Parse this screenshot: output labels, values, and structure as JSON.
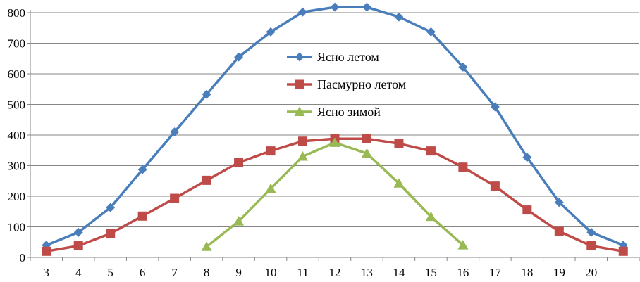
{
  "chart_data": {
    "type": "line",
    "title": "",
    "xlabel": "",
    "ylabel": "",
    "categories": [
      "3",
      "4",
      "5",
      "6",
      "7",
      "8",
      "9",
      "10",
      "11",
      "12",
      "13",
      "14",
      "15",
      "16",
      "17",
      "18",
      "19",
      "20",
      ""
    ],
    "ylim": [
      0,
      800
    ],
    "yticks": [
      0,
      100,
      200,
      300,
      400,
      500,
      600,
      700,
      800
    ],
    "grid": "horizontal",
    "legend_position": "center-top",
    "series": [
      {
        "name": "Ясно летом",
        "color": "#4a7ebb",
        "marker": "diamond",
        "values": [
          40,
          82,
          163,
          287,
          410,
          533,
          655,
          737,
          802,
          818,
          818,
          786,
          737,
          622,
          492,
          327,
          180,
          82,
          40
        ]
      },
      {
        "name": "Пасмурно летом",
        "color": "#be4b48",
        "marker": "square",
        "values": [
          20,
          38,
          78,
          135,
          193,
          252,
          310,
          348,
          380,
          388,
          388,
          372,
          348,
          295,
          233,
          155,
          85,
          38,
          20
        ]
      },
      {
        "name": "Ясно зимой",
        "color": "#98b954",
        "marker": "triangle",
        "values": [
          null,
          null,
          null,
          null,
          null,
          35,
          118,
          225,
          330,
          375,
          340,
          242,
          133,
          40,
          null,
          null,
          null,
          null,
          null
        ]
      }
    ]
  }
}
